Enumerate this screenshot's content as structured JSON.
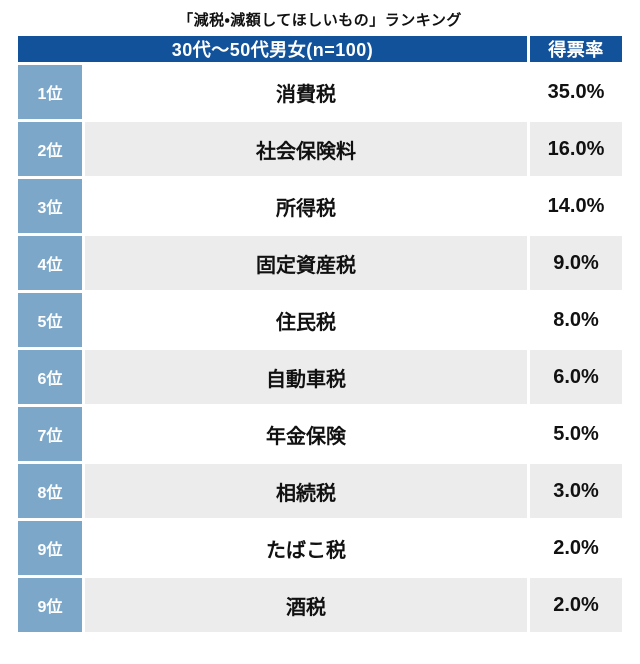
{
  "title": "「減税・減額してほしいもの」ランキング",
  "table": {
    "header": {
      "group_label": "30代〜50代男女(n=100)",
      "value_label": "得票率"
    },
    "rows": [
      {
        "rank": "1位",
        "item": "消費税",
        "value": "35.0%"
      },
      {
        "rank": "2位",
        "item": "社会保険料",
        "value": "16.0%"
      },
      {
        "rank": "3位",
        "item": "所得税",
        "value": "14.0%"
      },
      {
        "rank": "4位",
        "item": "固定資産税",
        "value": "9.0%"
      },
      {
        "rank": "5位",
        "item": "住民税",
        "value": "8.0%"
      },
      {
        "rank": "6位",
        "item": "自動車税",
        "value": "6.0%"
      },
      {
        "rank": "7位",
        "item": "年金保険",
        "value": "5.0%"
      },
      {
        "rank": "8位",
        "item": "相続税",
        "value": "3.0%"
      },
      {
        "rank": "9位",
        "item": "たばこ税",
        "value": "2.0%"
      },
      {
        "rank": "9位",
        "item": "酒税",
        "value": "2.0%"
      }
    ]
  },
  "colors": {
    "header_bg": "#11529b",
    "rank_bg": "#7ca7c8",
    "row_bg": "#ffffff",
    "row_alt_bg": "#ececec",
    "header_text": "#ffffff",
    "body_text": "#111111"
  },
  "chart_data": {
    "type": "table",
    "title": "「減税・減額してほしいもの」ランキング",
    "columns": [
      "順位",
      "30代〜50代男女(n=100)",
      "得票率"
    ],
    "rows": [
      [
        "1位",
        "消費税",
        "35.0%"
      ],
      [
        "2位",
        "社会保険料",
        "16.0%"
      ],
      [
        "3位",
        "所得税",
        "14.0%"
      ],
      [
        "4位",
        "固定資産税",
        "9.0%"
      ],
      [
        "5位",
        "住民税",
        "8.0%"
      ],
      [
        "6位",
        "自動車税",
        "6.0%"
      ],
      [
        "7位",
        "年金保険",
        "5.0%"
      ],
      [
        "8位",
        "相続税",
        "3.0%"
      ],
      [
        "9位",
        "たばこ税",
        "2.0%"
      ],
      [
        "9位",
        "酒税",
        "2.0%"
      ]
    ],
    "values_percent": [
      35.0,
      16.0,
      14.0,
      9.0,
      8.0,
      6.0,
      5.0,
      3.0,
      2.0,
      2.0
    ],
    "sample_size": 100,
    "layout": {
      "rank_column": true,
      "alternating_rows": true
    }
  }
}
